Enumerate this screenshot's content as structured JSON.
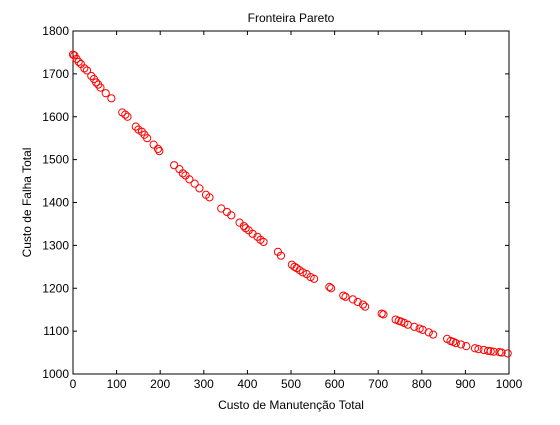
{
  "chart_data": {
    "type": "scatter",
    "title": "Fronteira Pareto",
    "xlabel": "Custo de Manutenção Total",
    "ylabel": "Custo de Falha Total",
    "xlim": [
      0,
      1000
    ],
    "ylim": [
      1000,
      1800
    ],
    "xticks": [
      0,
      100,
      200,
      300,
      400,
      500,
      600,
      700,
      800,
      900,
      1000
    ],
    "yticks": [
      1000,
      1100,
      1200,
      1300,
      1400,
      1500,
      1600,
      1700,
      1800
    ],
    "xtick_labels": [
      "0",
      "100",
      "200",
      "300",
      "400",
      "500",
      "600",
      "700",
      "800",
      "900",
      "1000"
    ],
    "ytick_labels": [
      "1000",
      "1100",
      "1200",
      "1300",
      "1400",
      "1500",
      "1600",
      "1700",
      "1800"
    ],
    "grid": false,
    "marker": "circle-open",
    "marker_color": "#ff0000",
    "axes_color": "#000000",
    "series": [
      {
        "x": [
          0,
          3,
          8,
          13,
          18,
          26,
          32,
          42,
          48,
          53,
          58,
          63,
          75,
          88,
          113,
          120,
          125,
          144,
          150,
          158,
          164,
          170,
          185,
          195,
          198,
          232,
          244,
          252,
          258,
          267,
          279,
          290,
          305,
          313,
          340,
          353,
          363,
          382,
          392,
          396,
          403,
          412,
          423,
          430,
          437,
          470,
          477,
          502,
          508,
          513,
          520,
          527,
          536,
          545,
          553,
          588,
          592,
          620,
          625,
          642,
          653,
          665,
          670,
          708,
          712,
          740,
          747,
          753,
          760,
          768,
          783,
          795,
          802,
          816,
          826,
          858,
          866,
          872,
          878,
          890,
          902,
          922,
          930,
          942,
          952,
          958,
          965,
          978,
          983,
          997
        ],
        "y": [
          1745,
          1743,
          1735,
          1728,
          1723,
          1713,
          1708,
          1695,
          1688,
          1680,
          1675,
          1668,
          1655,
          1643,
          1610,
          1605,
          1600,
          1577,
          1570,
          1565,
          1558,
          1550,
          1535,
          1525,
          1520,
          1487,
          1478,
          1468,
          1463,
          1454,
          1444,
          1433,
          1418,
          1412,
          1386,
          1378,
          1370,
          1353,
          1345,
          1340,
          1335,
          1327,
          1320,
          1313,
          1308,
          1285,
          1276,
          1255,
          1250,
          1247,
          1242,
          1237,
          1233,
          1226,
          1222,
          1203,
          1200,
          1183,
          1180,
          1174,
          1168,
          1162,
          1157,
          1141,
          1139,
          1127,
          1124,
          1122,
          1119,
          1115,
          1110,
          1106,
          1103,
          1097,
          1092,
          1082,
          1077,
          1075,
          1072,
          1069,
          1065,
          1060,
          1058,
          1056,
          1054,
          1053,
          1052,
          1051,
          1050,
          1048
        ]
      }
    ]
  }
}
